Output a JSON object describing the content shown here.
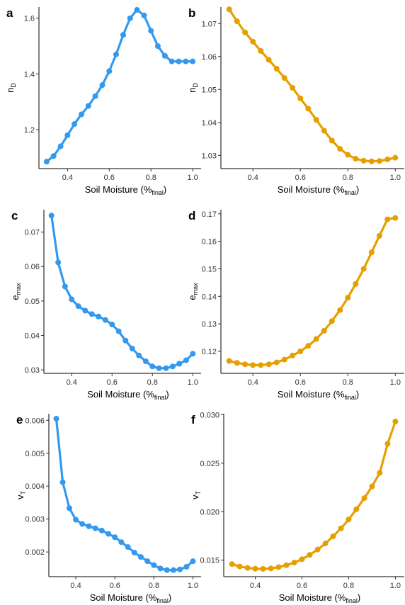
{
  "chart_data": [
    {
      "type": "line",
      "panel": "a",
      "color": "#3399ee",
      "ylabel": {
        "main": "n",
        "sub": "D"
      },
      "xlabel": {
        "main": "Soil Moisture (%",
        "sub": "final",
        "end": ")"
      },
      "xlim": [
        0.28,
        1.02
      ],
      "ylim": [
        1.06,
        1.64
      ],
      "xticks": [
        "0.4",
        "0.6",
        "0.8",
        "1.0"
      ],
      "yticks": [
        "1.2",
        "1.4",
        "1.6"
      ],
      "series": [
        {
          "x": [
            0.3,
            0.333,
            0.367,
            0.4,
            0.433,
            0.467,
            0.5,
            0.533,
            0.567,
            0.6,
            0.633,
            0.667,
            0.7,
            0.733,
            0.767,
            0.8,
            0.833,
            0.867,
            0.9,
            0.933,
            0.967,
            1.0
          ],
          "y": [
            1.085,
            1.105,
            1.14,
            1.18,
            1.22,
            1.255,
            1.285,
            1.32,
            1.36,
            1.41,
            1.47,
            1.54,
            1.6,
            1.63,
            1.61,
            1.555,
            1.5,
            1.465,
            1.445,
            1.445,
            1.445,
            1.445
          ]
        }
      ]
    },
    {
      "type": "line",
      "panel": "b",
      "color": "#e69f00",
      "ylabel": {
        "main": "n",
        "sub": "D"
      },
      "xlabel": {
        "main": "Soil Moisture (%",
        "sub": "final",
        "end": ")"
      },
      "xlim": [
        0.28,
        1.02
      ],
      "ylim": [
        1.026,
        1.075
      ],
      "xticks": [
        "0.4",
        "0.6",
        "0.8",
        "1.0"
      ],
      "yticks": [
        "1.03",
        "1.04",
        "1.05",
        "1.06",
        "1.07"
      ],
      "series": [
        {
          "x": [
            0.3,
            0.333,
            0.367,
            0.4,
            0.433,
            0.467,
            0.5,
            0.533,
            0.567,
            0.6,
            0.633,
            0.667,
            0.7,
            0.733,
            0.767,
            0.8,
            0.833,
            0.867,
            0.9,
            0.933,
            0.967,
            1.0
          ],
          "y": [
            1.0743,
            1.0707,
            1.0673,
            1.0645,
            1.0617,
            1.059,
            1.0563,
            1.0535,
            1.0505,
            1.0473,
            1.0442,
            1.0408,
            1.0375,
            1.0345,
            1.032,
            1.0302,
            1.029,
            1.0284,
            1.0282,
            1.0283,
            1.0288,
            1.0293
          ]
        }
      ]
    },
    {
      "type": "line",
      "panel": "c",
      "color": "#3399ee",
      "ylabel": {
        "main": "e",
        "sub": "max"
      },
      "xlabel": {
        "main": "Soil Moisture (%",
        "sub": "final",
        "end": ")"
      },
      "xlim": [
        0.28,
        1.02
      ],
      "ylim": [
        0.029,
        0.0765
      ],
      "xticks": [
        "0.4",
        "0.6",
        "0.8",
        "1.0"
      ],
      "yticks": [
        "0.03",
        "0.04",
        "0.05",
        "0.06",
        "0.07"
      ],
      "series": [
        {
          "x": [
            0.3,
            0.333,
            0.367,
            0.4,
            0.433,
            0.467,
            0.5,
            0.533,
            0.567,
            0.6,
            0.633,
            0.667,
            0.7,
            0.733,
            0.767,
            0.8,
            0.833,
            0.867,
            0.9,
            0.933,
            0.967,
            1.0
          ],
          "y": [
            0.0748,
            0.0612,
            0.0542,
            0.0505,
            0.0485,
            0.0472,
            0.0462,
            0.0455,
            0.0445,
            0.0432,
            0.0412,
            0.0385,
            0.0362,
            0.0342,
            0.0325,
            0.031,
            0.0305,
            0.0305,
            0.031,
            0.0318,
            0.0328,
            0.0347
          ]
        }
      ]
    },
    {
      "type": "line",
      "panel": "d",
      "color": "#e69f00",
      "ylabel": {
        "main": "e",
        "sub": "max"
      },
      "xlabel": {
        "main": "Soil Moisture (%",
        "sub": "final",
        "end": ")"
      },
      "xlim": [
        0.28,
        1.02
      ],
      "ylim": [
        0.112,
        0.1715
      ],
      "xticks": [
        "0.4",
        "0.6",
        "0.8",
        "1.0"
      ],
      "yticks": [
        "0.12",
        "0.13",
        "0.14",
        "0.15",
        "0.16",
        "0.17"
      ],
      "series": [
        {
          "x": [
            0.3,
            0.333,
            0.367,
            0.4,
            0.433,
            0.467,
            0.5,
            0.533,
            0.567,
            0.6,
            0.633,
            0.667,
            0.7,
            0.733,
            0.767,
            0.8,
            0.833,
            0.867,
            0.9,
            0.933,
            0.967,
            1.0
          ],
          "y": [
            0.1165,
            0.1158,
            0.1153,
            0.115,
            0.115,
            0.1153,
            0.116,
            0.117,
            0.1185,
            0.12,
            0.122,
            0.1245,
            0.1275,
            0.131,
            0.135,
            0.1395,
            0.1445,
            0.15,
            0.156,
            0.162,
            0.168,
            0.1685
          ]
        }
      ]
    },
    {
      "type": "line",
      "panel": "e",
      "color": "#3399ee",
      "ylabel": {
        "main": "v",
        "sub": "T"
      },
      "xlabel": {
        "main": "Soil Moisture (%",
        "sub": "final",
        "end": ")"
      },
      "xlim": [
        0.28,
        1.02
      ],
      "ylim": [
        0.00125,
        0.0062
      ],
      "xticks": [
        "0.4",
        "0.6",
        "0.8",
        "1.0"
      ],
      "yticks": [
        "0.002",
        "0.003",
        "0.004",
        "0.005",
        "0.006"
      ],
      "series": [
        {
          "x": [
            0.3,
            0.333,
            0.367,
            0.4,
            0.433,
            0.467,
            0.5,
            0.533,
            0.567,
            0.6,
            0.633,
            0.667,
            0.7,
            0.733,
            0.767,
            0.8,
            0.833,
            0.867,
            0.9,
            0.933,
            0.967,
            1.0
          ],
          "y": [
            0.00605,
            0.00412,
            0.00333,
            0.00298,
            0.00285,
            0.00278,
            0.00272,
            0.00265,
            0.00255,
            0.00245,
            0.0023,
            0.00215,
            0.00198,
            0.00185,
            0.00172,
            0.0016,
            0.0015,
            0.00145,
            0.00145,
            0.00147,
            0.00155,
            0.00172
          ]
        }
      ]
    },
    {
      "type": "line",
      "panel": "f",
      "color": "#e69f00",
      "ylabel": {
        "main": "v",
        "sub": "T"
      },
      "xlabel": {
        "main": "Soil Moisture (%",
        "sub": "final",
        "end": ")"
      },
      "xlim": [
        0.28,
        1.02
      ],
      "ylim": [
        0.0133,
        0.0301
      ],
      "xticks": [
        "0.4",
        "0.6",
        "0.8",
        "1.0"
      ],
      "yticks": [
        "0.015",
        "0.020",
        "0.025",
        "0.030"
      ],
      "series": [
        {
          "x": [
            0.3,
            0.333,
            0.367,
            0.4,
            0.433,
            0.467,
            0.5,
            0.533,
            0.567,
            0.6,
            0.633,
            0.667,
            0.7,
            0.733,
            0.767,
            0.8,
            0.833,
            0.867,
            0.9,
            0.933,
            0.967,
            1.0
          ],
          "y": [
            0.0146,
            0.01435,
            0.0142,
            0.01412,
            0.0141,
            0.01415,
            0.01428,
            0.01448,
            0.01475,
            0.0151,
            0.01555,
            0.0161,
            0.01672,
            0.01745,
            0.01828,
            0.0192,
            0.02025,
            0.0214,
            0.0226,
            0.024,
            0.027,
            0.0293
          ]
        }
      ]
    }
  ]
}
